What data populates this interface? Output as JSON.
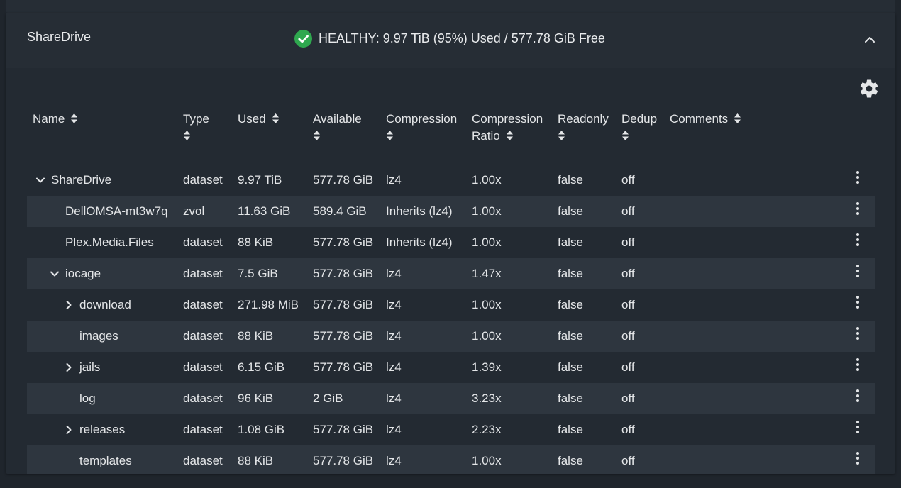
{
  "pool": {
    "name": "ShareDrive",
    "status": "HEALTHY: 9.97 TiB (95%) Used / 577.78 GiB Free",
    "status_color": "#2fa84f"
  },
  "table": {
    "columns": [
      {
        "label": "Name"
      },
      {
        "label": "Type"
      },
      {
        "label": "Used"
      },
      {
        "label": "Available"
      },
      {
        "label": "Compression"
      },
      {
        "label": "Compression",
        "label2": "Ratio"
      },
      {
        "label": "Readonly"
      },
      {
        "label": "Dedup"
      },
      {
        "label": "Comments"
      }
    ],
    "rows": [
      {
        "name": "ShareDrive",
        "level": 0,
        "expander": "expanded",
        "type": "dataset",
        "used": "9.97 TiB",
        "available": "577.78 GiB",
        "compression": "lz4",
        "ratio": "1.00x",
        "readonly": "false",
        "dedup": "off"
      },
      {
        "name": "DellOMSA-mt3w7q",
        "level": 1,
        "expander": "none",
        "type": "zvol",
        "used": "11.63 GiB",
        "available": "589.4 GiB",
        "compression": "Inherits (lz4)",
        "ratio": "1.00x",
        "readonly": "false",
        "dedup": "off"
      },
      {
        "name": "Plex.Media.Files",
        "level": 1,
        "expander": "none",
        "type": "dataset",
        "used": "88 KiB",
        "available": "577.78 GiB",
        "compression": "Inherits (lz4)",
        "ratio": "1.00x",
        "readonly": "false",
        "dedup": "off"
      },
      {
        "name": "iocage",
        "level": 1,
        "expander": "expanded",
        "type": "dataset",
        "used": "7.5 GiB",
        "available": "577.78 GiB",
        "compression": "lz4",
        "ratio": "1.47x",
        "readonly": "false",
        "dedup": "off"
      },
      {
        "name": "download",
        "level": 2,
        "expander": "collapsed",
        "type": "dataset",
        "used": "271.98 MiB",
        "available": "577.78 GiB",
        "compression": "lz4",
        "ratio": "1.00x",
        "readonly": "false",
        "dedup": "off"
      },
      {
        "name": "images",
        "level": 2,
        "expander": "none",
        "type": "dataset",
        "used": "88 KiB",
        "available": "577.78 GiB",
        "compression": "lz4",
        "ratio": "1.00x",
        "readonly": "false",
        "dedup": "off"
      },
      {
        "name": "jails",
        "level": 2,
        "expander": "collapsed",
        "type": "dataset",
        "used": "6.15 GiB",
        "available": "577.78 GiB",
        "compression": "lz4",
        "ratio": "1.39x",
        "readonly": "false",
        "dedup": "off"
      },
      {
        "name": "log",
        "level": 2,
        "expander": "none",
        "type": "dataset",
        "used": "96 KiB",
        "available": "2 GiB",
        "compression": "lz4",
        "ratio": "3.23x",
        "readonly": "false",
        "dedup": "off"
      },
      {
        "name": "releases",
        "level": 2,
        "expander": "collapsed",
        "type": "dataset",
        "used": "1.08 GiB",
        "available": "577.78 GiB",
        "compression": "lz4",
        "ratio": "2.23x",
        "readonly": "false",
        "dedup": "off"
      },
      {
        "name": "templates",
        "level": 2,
        "expander": "none",
        "type": "dataset",
        "used": "88 KiB",
        "available": "577.78 GiB",
        "compression": "lz4",
        "ratio": "1.00x",
        "readonly": "false",
        "dedup": "off"
      }
    ]
  },
  "icons": {
    "status": "check-circle-icon",
    "collapse": "chevron-up-icon",
    "settings": "gear-icon",
    "sort": "sort-icon",
    "row_menu": "more-vertical-icon",
    "expand": "chevron-right-icon",
    "expanded": "chevron-down-icon"
  }
}
